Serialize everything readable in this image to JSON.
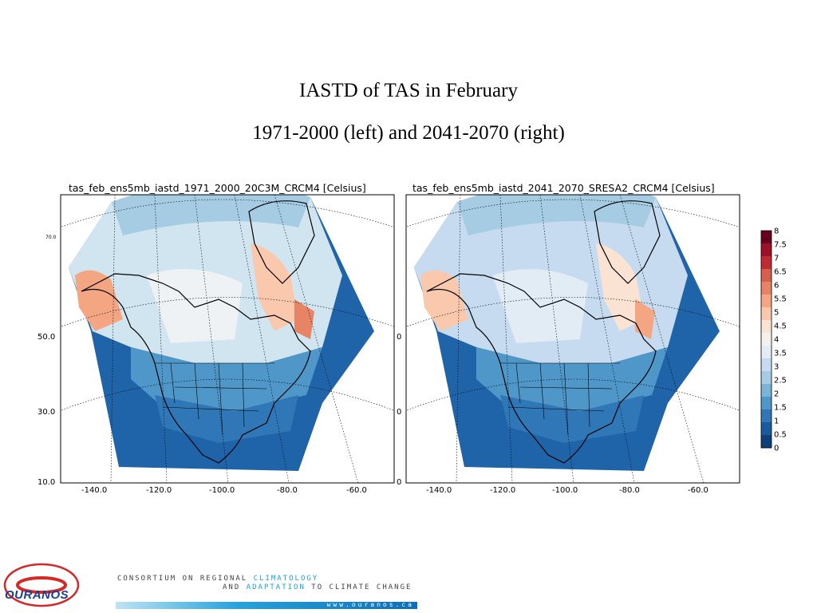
{
  "slide": {
    "title_line1": "IASTD of TAS in February",
    "title_line2": "1971-2000 (left) and 2041-2070 (right)"
  },
  "maps": [
    {
      "label": "tas_feb_ens5mb_iastd_1971_2000_20C3M_CRCM4 [Celsius]",
      "lat_ticks": [
        "70.0",
        "50.0",
        "30.0",
        "10.0"
      ],
      "lon_ticks": [
        "-140.0",
        "-120.0",
        "-100.0",
        "-80.0",
        "-60.0"
      ]
    },
    {
      "label": "tas_feb_ens5mb_iastd_2041_2070_SRESA2_CRCM4 [Celsius]",
      "lat_ticks": [
        "0",
        "0",
        "0"
      ],
      "lon_ticks": [
        "-140.0",
        "-120.0",
        "-100.0",
        "-80.0",
        "-60.0"
      ]
    }
  ],
  "colorbar": {
    "labels": [
      "8",
      "7.5",
      "7",
      "6.5",
      "6",
      "5.5",
      "5",
      "4.5",
      "4",
      "3.5",
      "3",
      "2.5",
      "2",
      "1.5",
      "1",
      "0.5",
      "0"
    ],
    "colors": [
      "#67001f",
      "#9c1127",
      "#bf2b32",
      "#d6604d",
      "#e68465",
      "#f4a582",
      "#f9c8ad",
      "#fbe3d4",
      "#f5f0ee",
      "#e1ecf4",
      "#c6dbef",
      "#a6cce3",
      "#7ab5d7",
      "#4f97c9",
      "#2f77b6",
      "#1c5a9e",
      "#0e3f7a"
    ]
  },
  "footer": {
    "logo": "OURANOS",
    "line1_a": "CONSORTIUM ON REGIONAL ",
    "line1_b": "CLIMATOLOGY",
    "line2_a": "AND ",
    "line2_b": "ADAPTATION",
    "line2_c": " TO CLIMATE CHANGE",
    "url": "www.ouranos.ca"
  }
}
